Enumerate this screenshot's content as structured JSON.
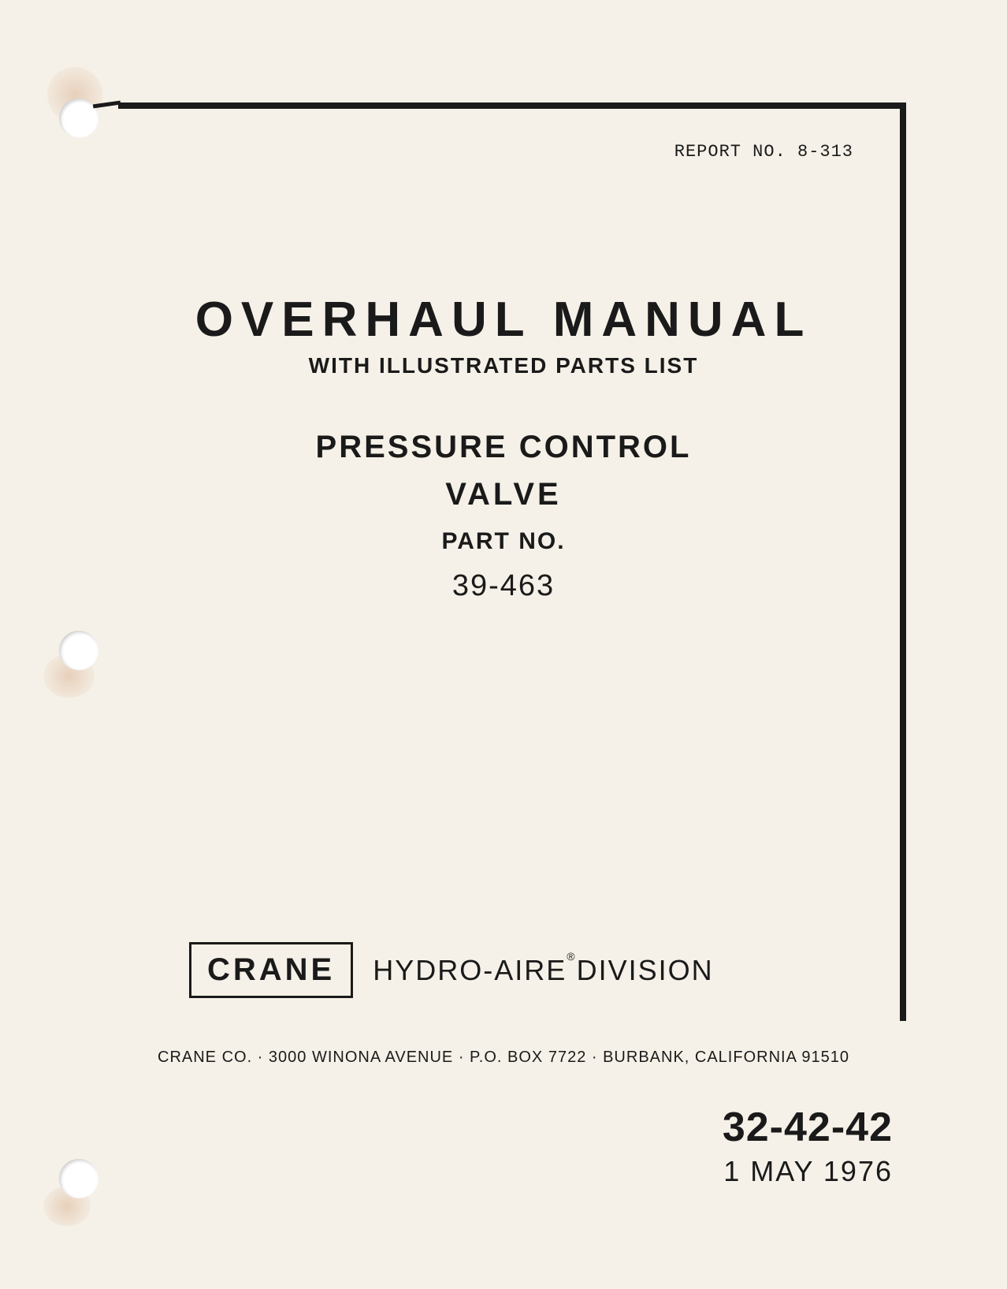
{
  "report_no": "REPORT NO. 8-313",
  "title": "OVERHAUL MANUAL",
  "subtitle": "WITH ILLUSTRATED PARTS LIST",
  "product_line1": "PRESSURE CONTROL",
  "product_line2": "VALVE",
  "part_no_label": "PART NO.",
  "part_no_value": "39-463",
  "company_box": "CRANE",
  "division_prefix": "HYDRO-AIRE",
  "division_suffix": "DIVISION",
  "address": "CRANE CO. · 3000 WINONA AVENUE · P.O. BOX 7722 · BURBANK, CALIFORNIA 91510",
  "doc_number": "32-42-42",
  "doc_date": "1 MAY 1976",
  "colors": {
    "background": "#f5f1e8",
    "text": "#1a1a1a",
    "border": "#1a1a1a"
  }
}
